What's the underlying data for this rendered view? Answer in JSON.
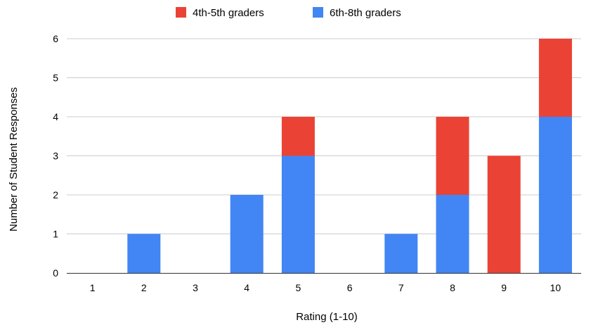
{
  "chart_data": {
    "type": "bar",
    "stacked": true,
    "categories": [
      "1",
      "2",
      "3",
      "4",
      "5",
      "6",
      "7",
      "8",
      "9",
      "10"
    ],
    "series": [
      {
        "name": "6th-8th graders",
        "color": "#4285f4",
        "values": [
          0,
          1,
          0,
          2,
          3,
          0,
          1,
          2,
          0,
          4
        ]
      },
      {
        "name": "4th-5th graders",
        "color": "#ea4335",
        "values": [
          0,
          0,
          0,
          0,
          1,
          0,
          0,
          2,
          3,
          2
        ]
      }
    ],
    "legend_order": [
      "4th-5th graders",
      "6th-8th graders"
    ],
    "legend_position": "top-center",
    "xlabel": "Rating (1-10)",
    "ylabel": "Number of Student Responses",
    "ylim": [
      0,
      6
    ],
    "yticks": [
      "0",
      "1",
      "2",
      "3",
      "4",
      "5",
      "6"
    ],
    "grid": true,
    "gridline_color": "#cccccc"
  }
}
